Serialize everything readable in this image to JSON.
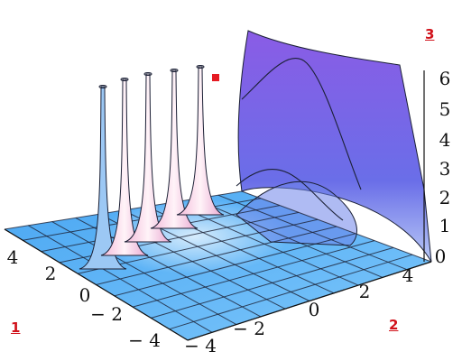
{
  "chart_data": {
    "type": "surface3d",
    "title": "",
    "axes": {
      "x": {
        "label": "",
        "range": [
          -4,
          4
        ],
        "ticks": [
          -4,
          -2,
          0,
          2,
          4
        ]
      },
      "y": {
        "label": "",
        "range": [
          -4,
          4
        ],
        "ticks": [
          -4,
          -2,
          0,
          2,
          4
        ]
      },
      "z": {
        "label": "",
        "range": [
          0,
          6
        ],
        "ticks": [
          0,
          1,
          2,
          3,
          4,
          5,
          6
        ]
      }
    },
    "x_tick_labels": [
      "4",
      "2",
      "0",
      "− 2",
      "− 4"
    ],
    "y_tick_labels": [
      "− 4",
      "− 2",
      "0",
      "2",
      "4"
    ],
    "z_tick_labels": [
      "0",
      "1",
      "2",
      "3",
      "4",
      "5",
      "6"
    ],
    "spike_count": 5,
    "colors": {
      "surface_low": "#5fb4f4",
      "surface_high": "#8a5ce6",
      "spike_color": "#f6cfe4",
      "mesh": "#1b2035",
      "marker": "#d1121b"
    }
  },
  "annotations": {
    "marker_1": "1",
    "marker_2": "2",
    "marker_3": "3"
  }
}
